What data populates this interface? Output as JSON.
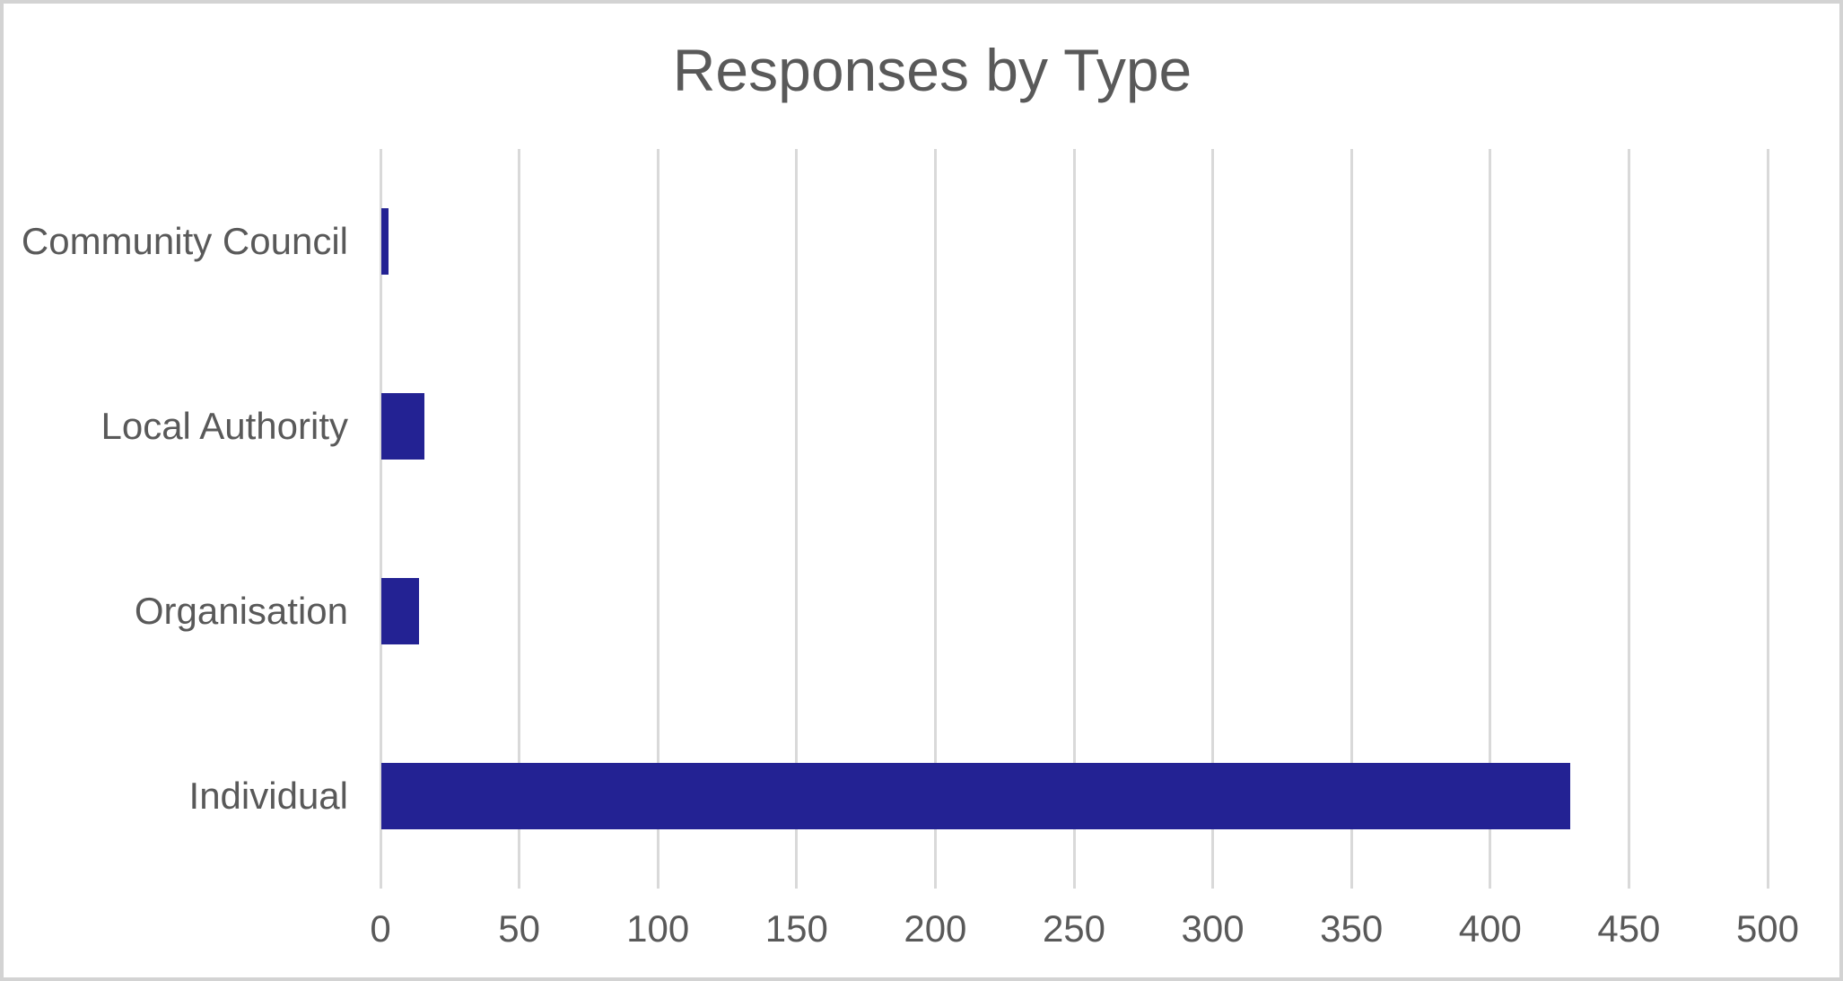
{
  "chart_data": {
    "type": "bar",
    "orientation": "horizontal",
    "title": "Responses by Type",
    "categories": [
      "Community Council",
      "Local Authority",
      "Organisation",
      "Individual"
    ],
    "values": [
      3,
      16,
      14,
      429
    ],
    "xlabel": "",
    "ylabel": "",
    "xlim": [
      0,
      500
    ],
    "xticks": [
      0,
      50,
      100,
      150,
      200,
      250,
      300,
      350,
      400,
      450,
      500
    ],
    "grid": true,
    "legend": false,
    "bar_color": "#232293",
    "text_color": "#595959",
    "gridline_color": "#D9D9D9",
    "background_color": "#FFFFFF",
    "border_color": "#D3D3D3"
  }
}
